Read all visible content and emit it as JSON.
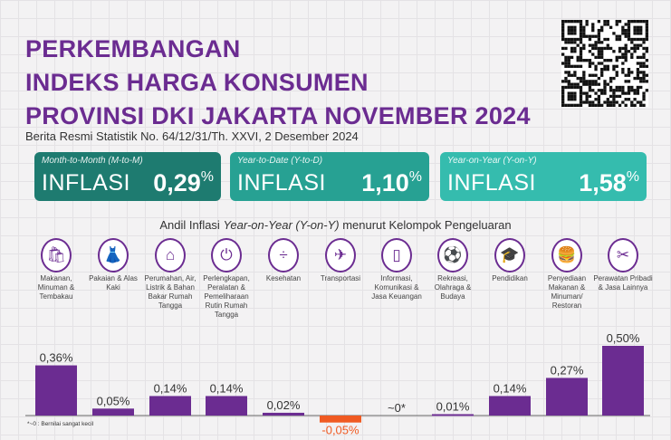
{
  "title": [
    "PERKEMBANGAN",
    "INDEKS HARGA KONSUMEN",
    "PROVINSI DKI JAKARTA NOVEMBER 2024"
  ],
  "subtitle": "Berita Resmi Statistik No. 64/12/31/Th. XXVI, 2 Desember 2024",
  "cards": [
    {
      "label": "Month-to-Month (M-to-M)",
      "kind": "INFLASI",
      "value": "0,29",
      "unit": "%",
      "color": "#1e7b70"
    },
    {
      "label": "Year-to-Date (Y-to-D)",
      "kind": "INFLASI",
      "value": "1,10",
      "unit": "%",
      "color": "#27a193"
    },
    {
      "label": "Year-on-Year (Y-on-Y)",
      "kind": "INFLASI",
      "value": "1,58",
      "unit": "%",
      "color": "#35bcae"
    }
  ],
  "section": {
    "a": "Andil Inflasi ",
    "b": "Year-on-Year (Y-on-Y)",
    "c": " menurut Kelompok Pengeluaran"
  },
  "categories": [
    {
      "name": "Makanan, Minuman & Tembakau",
      "icon": "shopping-bag-icon"
    },
    {
      "name": "Pakaian & Alas Kaki",
      "icon": "dress-icon"
    },
    {
      "name": "Perumahan, Air, Listrik & Bahan Bakar Rumah Tangga",
      "icon": "house-icon"
    },
    {
      "name": "Perlengkapan, Peralatan & Pemeliharaan Rutin Rumah Tangga",
      "icon": "plug-icon"
    },
    {
      "name": "Kesehatan",
      "icon": "medicine-icon"
    },
    {
      "name": "Transportasi",
      "icon": "airplane-icon"
    },
    {
      "name": "Informasi, Komunikasi & Jasa Keuangan",
      "icon": "phone-icon"
    },
    {
      "name": "Rekreasi, Olahraga & Budaya",
      "icon": "football-icon"
    },
    {
      "name": "Pendidikan",
      "icon": "graduation-cap-icon"
    },
    {
      "name": "Penyediaan Makanan & Minuman/ Restoran",
      "icon": "burger-drink-icon"
    },
    {
      "name": "Perawatan Pribadi & Jasa Lainnya",
      "icon": "scissors-comb-icon"
    }
  ],
  "chart_data": {
    "type": "bar",
    "values": [
      0.36,
      0.05,
      0.14,
      0.14,
      0.02,
      -0.05,
      0,
      0.01,
      0.14,
      0.27,
      0.5
    ],
    "labels": [
      "0,36%",
      "0,05%",
      "0,14%",
      "0,14%",
      "0,02%",
      "-0,05%",
      "~0*",
      "0,01%",
      "0,14%",
      "0,27%",
      "0,50%"
    ],
    "colors": {
      "positive": "#6b2c91",
      "negative": "#f05a22"
    }
  },
  "note": "*~0 : Bernilai sangat kecil"
}
